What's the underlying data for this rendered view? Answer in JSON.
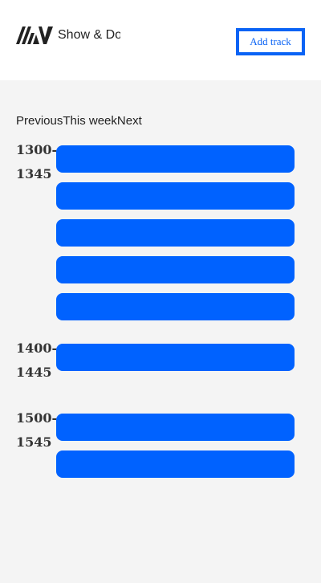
{
  "header": {
    "brand_name": "Show & Do",
    "add_track_label": "Add track",
    "logo_icon": "aw-logo-icon"
  },
  "nav": {
    "previous_label": "Previous",
    "current_label": "This week",
    "next_label": "Next"
  },
  "schedule": {
    "groups": [
      {
        "start": "1300-",
        "end": "1345",
        "slot_count": 5
      },
      {
        "start": "1400-",
        "end": "1445",
        "slot_count": 1
      },
      {
        "start": "1500-",
        "end": "1545",
        "slot_count": 2
      }
    ]
  },
  "colors": {
    "accent": "#0062ff",
    "button_border": "#0a63f5",
    "page_background": "#f4f4f4",
    "header_background": "#ffffff"
  }
}
